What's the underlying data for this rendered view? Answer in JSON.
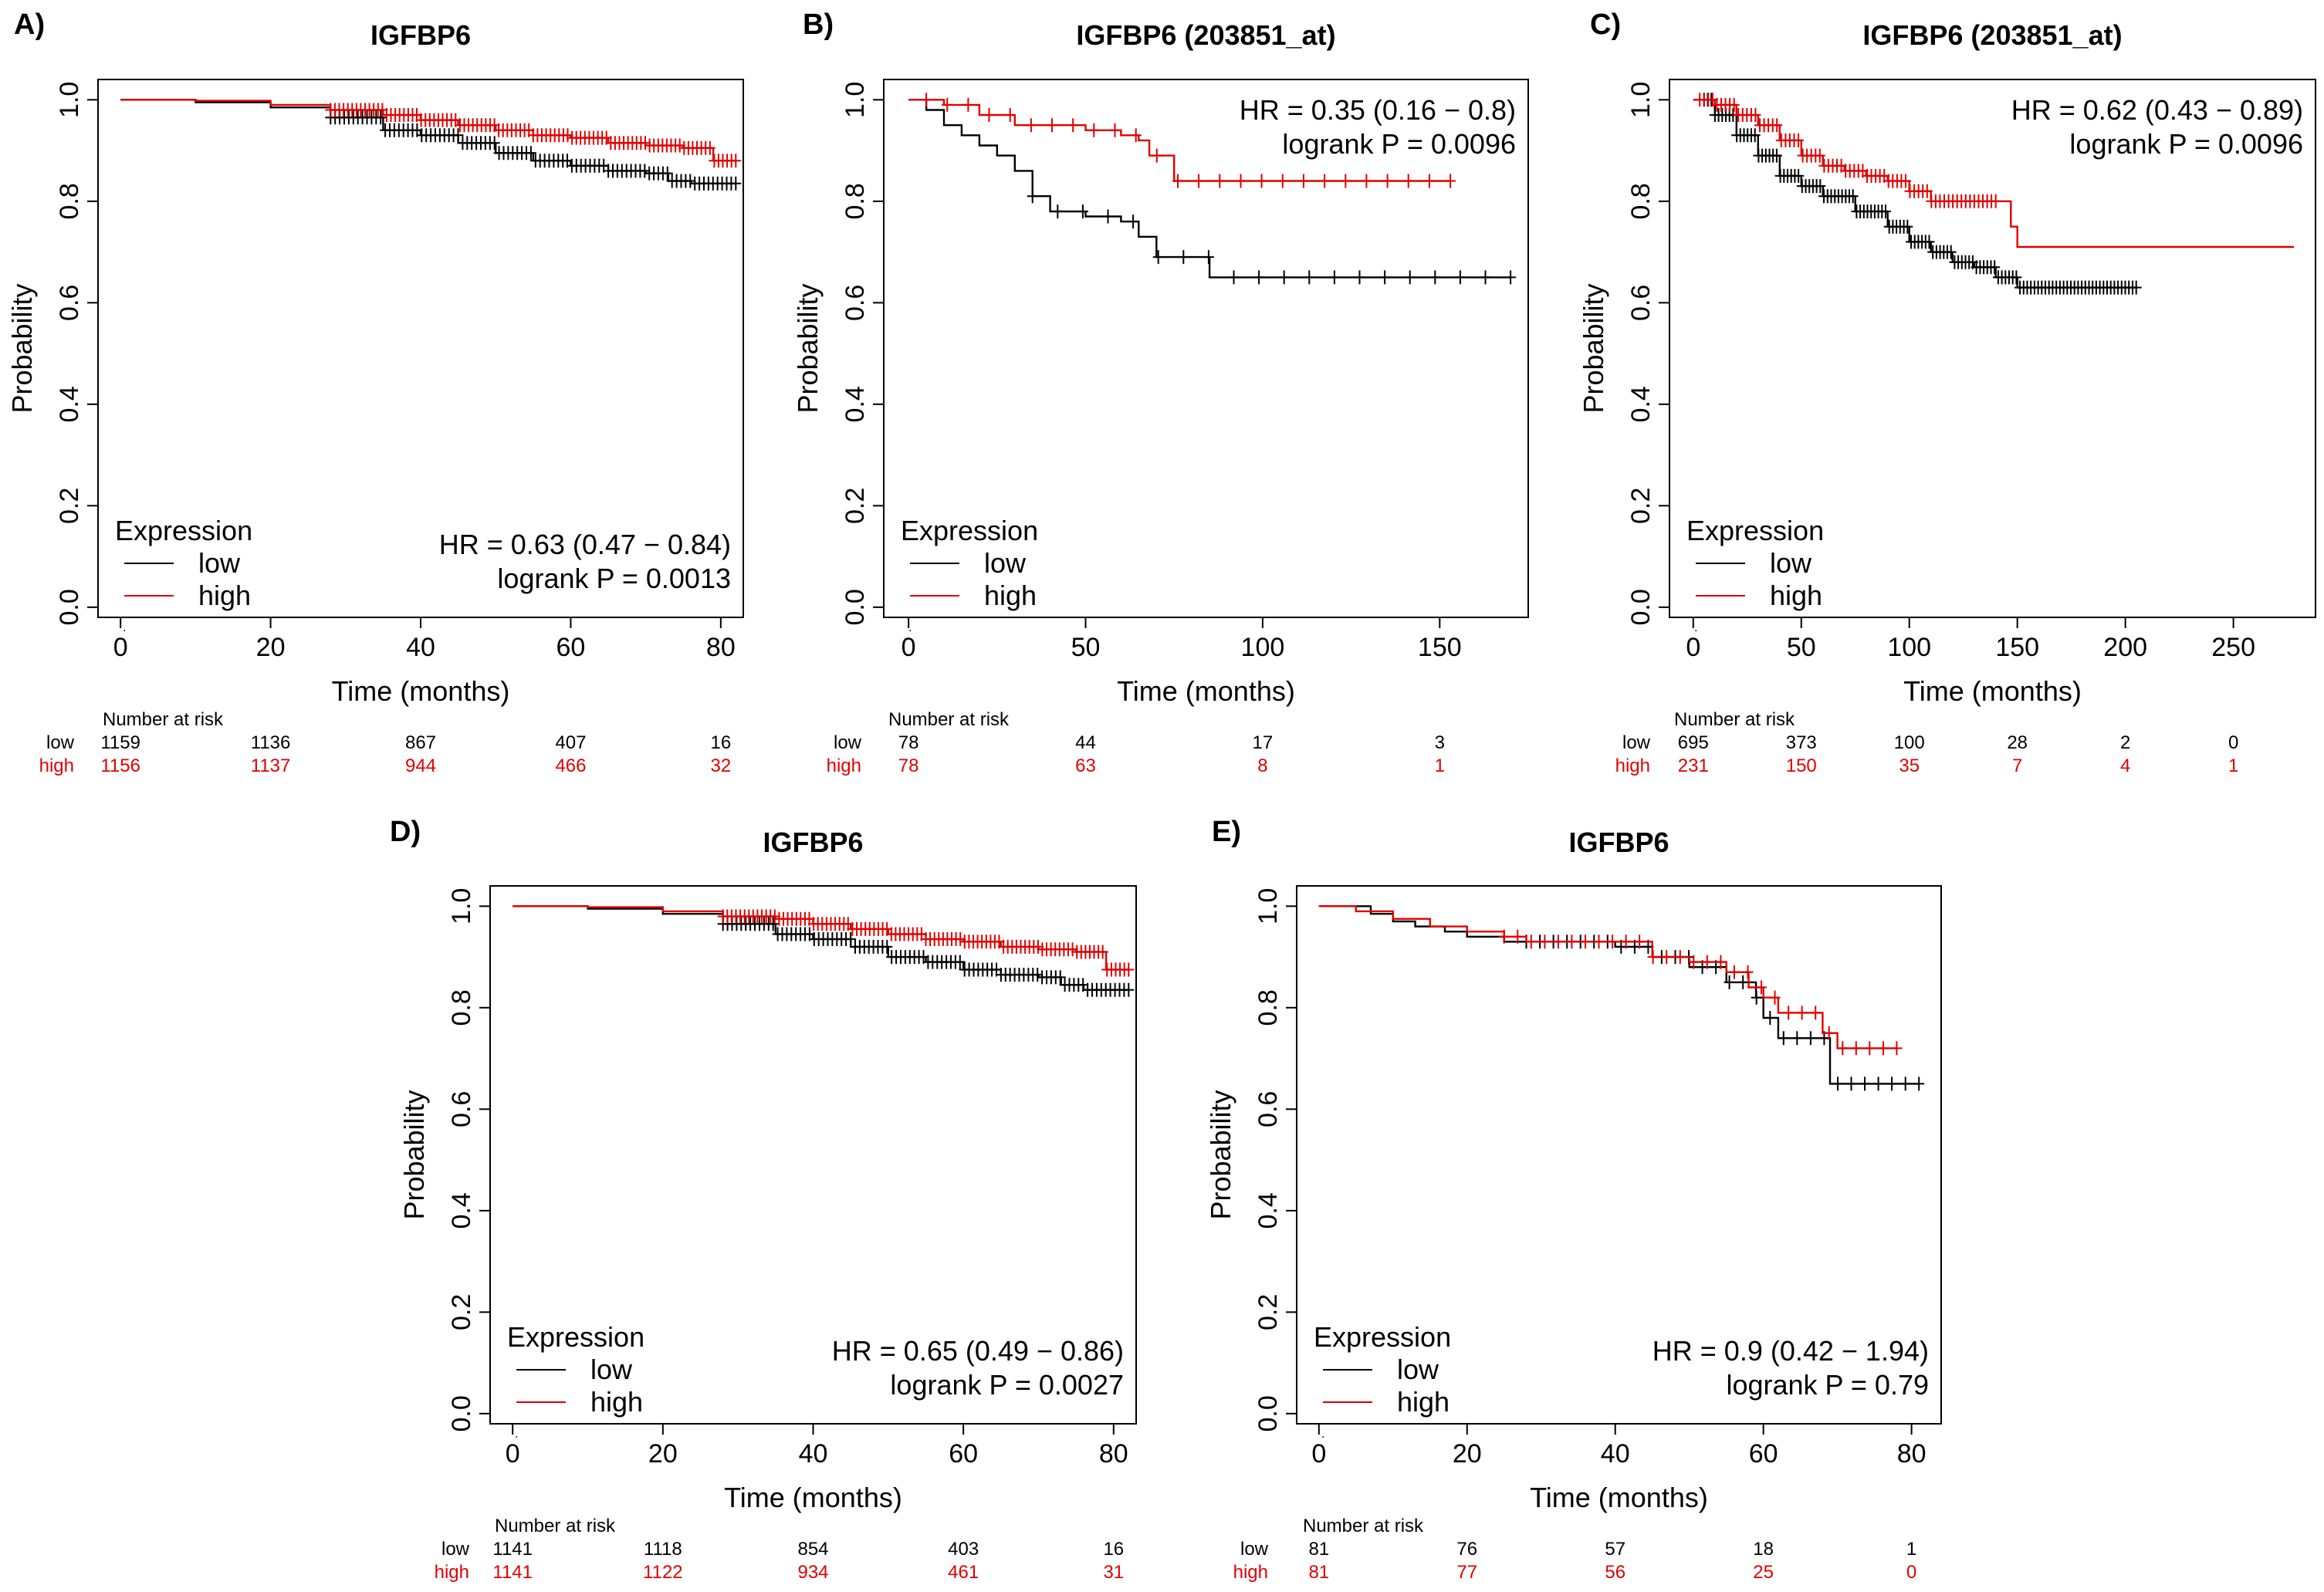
{
  "figure": {
    "colors": {
      "low": "#000000",
      "high": "#e00000"
    },
    "risk_header": "Number at risk",
    "legend_title": "Expression",
    "legend_labels": [
      "low",
      "high"
    ],
    "y_label": "Probability",
    "x_label": "Time (months)"
  },
  "chart_data": [
    {
      "panel_label": "A)",
      "type": "line",
      "title": "IGFBP6",
      "xlabel": "Time (months)",
      "ylabel": "Probability",
      "xlim": [
        -3,
        83
      ],
      "ylim": [
        -0.02,
        1.04
      ],
      "xticks": [
        0,
        20,
        40,
        60,
        80
      ],
      "yticks": [
        0.0,
        0.2,
        0.4,
        0.6,
        0.8,
        1.0
      ],
      "ytick_labels": [
        "0.0",
        "0.2",
        "0.4",
        "0.6",
        "0.8",
        "1.0"
      ],
      "legend": {
        "title": "Expression",
        "placement": "bottom-left"
      },
      "stats": {
        "hr": "HR = 0.63 (0.47 − 0.84)",
        "logrank": "logrank P = 0.0013",
        "placement": "bottom-right"
      },
      "series": [
        {
          "name": "low",
          "color": "#000000",
          "x": [
            0,
            10,
            20,
            28,
            35,
            40,
            45,
            50,
            55,
            60,
            65,
            70,
            73,
            76,
            82
          ],
          "y": [
            1.0,
            0.995,
            0.985,
            0.965,
            0.94,
            0.93,
            0.915,
            0.895,
            0.88,
            0.87,
            0.86,
            0.855,
            0.84,
            0.835,
            0.835
          ],
          "censor": {
            "start": 28,
            "end": 82,
            "count": 90
          }
        },
        {
          "name": "high",
          "color": "#e00000",
          "x": [
            0,
            10,
            20,
            28,
            35,
            40,
            45,
            50,
            55,
            60,
            65,
            70,
            75,
            79,
            82
          ],
          "y": [
            1.0,
            0.998,
            0.99,
            0.98,
            0.97,
            0.96,
            0.95,
            0.94,
            0.93,
            0.925,
            0.915,
            0.91,
            0.905,
            0.88,
            0.88
          ],
          "censor": {
            "start": 28,
            "end": 82,
            "count": 95
          }
        }
      ],
      "risk_table": {
        "x": [
          0,
          20,
          40,
          60,
          80
        ],
        "rows": [
          {
            "name": "low",
            "values": [
              "1159",
              "1136",
              "867",
              "407",
              "16"
            ]
          },
          {
            "name": "high",
            "values": [
              "1156",
              "1137",
              "944",
              "466",
              "32"
            ]
          }
        ]
      }
    },
    {
      "panel_label": "B)",
      "type": "line",
      "title": "IGFBP6 (203851_at)",
      "xlabel": "Time (months)",
      "ylabel": "Probability",
      "xlim": [
        -7,
        175
      ],
      "ylim": [
        -0.02,
        1.04
      ],
      "xticks": [
        0,
        50,
        100,
        150
      ],
      "yticks": [
        0.0,
        0.2,
        0.4,
        0.6,
        0.8,
        1.0
      ],
      "ytick_labels": [
        "0.0",
        "0.2",
        "0.4",
        "0.6",
        "0.8",
        "1.0"
      ],
      "legend": {
        "title": "Expression",
        "placement": "bottom-left"
      },
      "stats": {
        "hr": "HR = 0.35 (0.16 − 0.8)",
        "logrank": "logrank P = 0.0096",
        "placement": "top-right"
      },
      "series": [
        {
          "name": "low",
          "color": "#000000",
          "x": [
            0,
            5,
            10,
            15,
            20,
            25,
            30,
            35,
            40,
            50,
            60,
            65,
            70,
            85,
            170
          ],
          "y": [
            1.0,
            0.98,
            0.95,
            0.93,
            0.91,
            0.89,
            0.86,
            0.81,
            0.78,
            0.77,
            0.76,
            0.73,
            0.69,
            0.65,
            0.65
          ],
          "censor": {
            "start": 35,
            "end": 170,
            "count": 20
          }
        },
        {
          "name": "high",
          "color": "#e00000",
          "x": [
            0,
            10,
            20,
            30,
            40,
            50,
            60,
            65,
            68,
            75,
            153
          ],
          "y": [
            1.0,
            0.99,
            0.97,
            0.95,
            0.95,
            0.94,
            0.93,
            0.92,
            0.89,
            0.84,
            0.84
          ],
          "censor": {
            "start": 5,
            "end": 153,
            "count": 26
          }
        }
      ],
      "risk_table": {
        "x": [
          0,
          50,
          100,
          150
        ],
        "rows": [
          {
            "name": "low",
            "values": [
              "78",
              "44",
              "17",
              "3"
            ]
          },
          {
            "name": "high",
            "values": [
              "78",
              "63",
              "8",
              "1"
            ]
          }
        ]
      }
    },
    {
      "panel_label": "C)",
      "type": "line",
      "title": "IGFBP6 (203851_at)",
      "xlabel": "Time (months)",
      "ylabel": "Probability",
      "xlim": [
        -11,
        288
      ],
      "ylim": [
        -0.02,
        1.04
      ],
      "xticks": [
        0,
        50,
        100,
        150,
        200,
        250
      ],
      "yticks": [
        0.0,
        0.2,
        0.4,
        0.6,
        0.8,
        1.0
      ],
      "ytick_labels": [
        "0.0",
        "0.2",
        "0.4",
        "0.6",
        "0.8",
        "1.0"
      ],
      "legend": {
        "title": "Expression",
        "placement": "bottom-left"
      },
      "stats": {
        "hr": "HR = 0.62 (0.43 − 0.89)",
        "logrank": "logrank P = 0.0096",
        "placement": "top-right"
      },
      "series": [
        {
          "name": "low",
          "color": "#000000",
          "x": [
            0,
            10,
            20,
            30,
            40,
            50,
            60,
            75,
            90,
            100,
            110,
            120,
            130,
            140,
            150,
            205
          ],
          "y": [
            1.0,
            0.97,
            0.93,
            0.89,
            0.85,
            0.83,
            0.81,
            0.78,
            0.75,
            0.72,
            0.7,
            0.68,
            0.67,
            0.65,
            0.63,
            0.63
          ],
          "censor": {
            "start": 5,
            "end": 205,
            "count": 120
          }
        },
        {
          "name": "high",
          "color": "#e00000",
          "x": [
            0,
            10,
            20,
            30,
            40,
            50,
            60,
            70,
            80,
            90,
            100,
            110,
            120,
            140,
            147,
            150,
            278
          ],
          "y": [
            1.0,
            0.99,
            0.97,
            0.95,
            0.92,
            0.89,
            0.87,
            0.86,
            0.85,
            0.84,
            0.82,
            0.8,
            0.8,
            0.8,
            0.75,
            0.71,
            0.71
          ],
          "censor": {
            "start": 3,
            "end": 140,
            "count": 70
          }
        }
      ],
      "risk_table": {
        "x": [
          0,
          50,
          100,
          150,
          200,
          250
        ],
        "rows": [
          {
            "name": "low",
            "values": [
              "695",
              "373",
              "100",
              "28",
              "2",
              "0"
            ]
          },
          {
            "name": "high",
            "values": [
              "231",
              "150",
              "35",
              "7",
              "4",
              "1"
            ]
          }
        ]
      }
    },
    {
      "panel_label": "D)",
      "type": "line",
      "title": "IGFBP6",
      "xlabel": "Time (months)",
      "ylabel": "Probability",
      "xlim": [
        -3,
        83
      ],
      "ylim": [
        -0.02,
        1.04
      ],
      "xticks": [
        0,
        20,
        40,
        60,
        80
      ],
      "yticks": [
        0.0,
        0.2,
        0.4,
        0.6,
        0.8,
        1.0
      ],
      "ytick_labels": [
        "0.0",
        "0.2",
        "0.4",
        "0.6",
        "0.8",
        "1.0"
      ],
      "legend": {
        "title": "Expression",
        "placement": "bottom-left"
      },
      "stats": {
        "hr": "HR = 0.65 (0.49 − 0.86)",
        "logrank": "logrank P = 0.0027",
        "placement": "bottom-right"
      },
      "series": [
        {
          "name": "low",
          "color": "#000000",
          "x": [
            0,
            10,
            20,
            28,
            35,
            40,
            45,
            50,
            55,
            60,
            65,
            70,
            73,
            76,
            82
          ],
          "y": [
            1.0,
            0.995,
            0.985,
            0.965,
            0.945,
            0.935,
            0.92,
            0.9,
            0.89,
            0.875,
            0.865,
            0.86,
            0.845,
            0.835,
            0.835
          ],
          "censor": {
            "start": 28,
            "end": 82,
            "count": 90
          }
        },
        {
          "name": "high",
          "color": "#e00000",
          "x": [
            0,
            10,
            20,
            28,
            35,
            40,
            45,
            50,
            55,
            60,
            65,
            70,
            75,
            79,
            82
          ],
          "y": [
            1.0,
            0.998,
            0.99,
            0.98,
            0.975,
            0.965,
            0.955,
            0.945,
            0.935,
            0.93,
            0.92,
            0.915,
            0.91,
            0.875,
            0.875
          ],
          "censor": {
            "start": 28,
            "end": 82,
            "count": 95
          }
        }
      ],
      "risk_table": {
        "x": [
          0,
          20,
          40,
          60,
          80
        ],
        "rows": [
          {
            "name": "low",
            "values": [
              "1141",
              "1118",
              "854",
              "403",
              "16"
            ]
          },
          {
            "name": "high",
            "values": [
              "1141",
              "1122",
              "934",
              "461",
              "31"
            ]
          }
        ]
      }
    },
    {
      "panel_label": "E)",
      "type": "line",
      "title": "IGFBP6",
      "xlabel": "Time (months)",
      "ylabel": "Probability",
      "xlim": [
        -3,
        84
      ],
      "ylim": [
        -0.02,
        1.04
      ],
      "xticks": [
        0,
        20,
        40,
        60,
        80
      ],
      "yticks": [
        0.0,
        0.2,
        0.4,
        0.6,
        0.8,
        1.0
      ],
      "ytick_labels": [
        "0.0",
        "0.2",
        "0.4",
        "0.6",
        "0.8",
        "1.0"
      ],
      "legend": {
        "title": "Expression",
        "placement": "bottom-left"
      },
      "stats": {
        "hr": "HR = 0.9 (0.42 − 1.94)",
        "logrank": "logrank P = 0.79",
        "placement": "bottom-right"
      },
      "series": [
        {
          "name": "low",
          "color": "#000000",
          "x": [
            0,
            7,
            10,
            13,
            17,
            20,
            25,
            30,
            40,
            45,
            50,
            55,
            59,
            60,
            62,
            68,
            69,
            81
          ],
          "y": [
            1.0,
            0.985,
            0.97,
            0.96,
            0.95,
            0.94,
            0.93,
            0.93,
            0.92,
            0.9,
            0.88,
            0.85,
            0.82,
            0.78,
            0.74,
            0.74,
            0.65,
            0.65
          ],
          "censor": {
            "start": 28,
            "end": 81,
            "count": 30
          }
        },
        {
          "name": "high",
          "color": "#e00000",
          "x": [
            0,
            5,
            10,
            15,
            20,
            25,
            28,
            40,
            45,
            50,
            55,
            58,
            60,
            62,
            65,
            68,
            70,
            78
          ],
          "y": [
            1.0,
            0.99,
            0.975,
            0.96,
            0.95,
            0.94,
            0.93,
            0.93,
            0.9,
            0.89,
            0.87,
            0.84,
            0.82,
            0.79,
            0.79,
            0.75,
            0.72,
            0.72
          ],
          "censor": {
            "start": 25,
            "end": 78,
            "count": 30
          }
        }
      ],
      "risk_table": {
        "x": [
          0,
          20,
          40,
          60,
          80
        ],
        "rows": [
          {
            "name": "low",
            "values": [
              "81",
              "76",
              "57",
              "18",
              "1"
            ]
          },
          {
            "name": "high",
            "values": [
              "81",
              "77",
              "56",
              "25",
              "0"
            ]
          }
        ]
      }
    }
  ]
}
